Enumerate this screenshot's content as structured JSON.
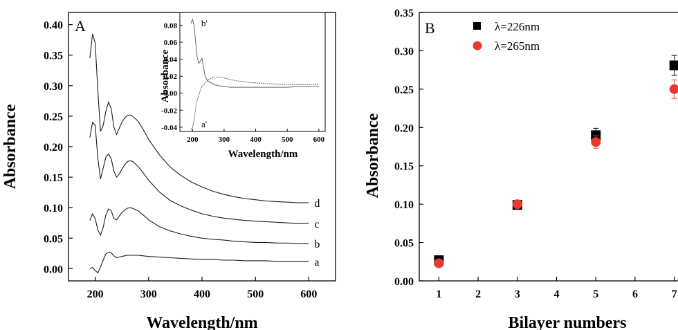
{
  "colors": {
    "series_226": "#000000",
    "series_265": "#e8392f",
    "axis": "#000000",
    "curve": "#1a1a1a"
  },
  "chart_data": [
    {
      "panel": "A",
      "type": "line",
      "xlabel": "Wavelength/nm",
      "ylabel": "Absorbance",
      "xlim": [
        150,
        650
      ],
      "ylim": [
        -0.02,
        0.42
      ],
      "xticks": [
        200,
        300,
        400,
        500,
        600
      ],
      "yticks": [
        0.0,
        0.05,
        0.1,
        0.15,
        0.2,
        0.25,
        0.3,
        0.35,
        0.4
      ],
      "grid": false,
      "series": [
        {
          "name": "a",
          "x": [
            190,
            195,
            200,
            205,
            210,
            215,
            220,
            225,
            230,
            235,
            240,
            245,
            250,
            255,
            260,
            265,
            270,
            280,
            290,
            300,
            320,
            340,
            360,
            380,
            400,
            420,
            440,
            460,
            480,
            500,
            520,
            540,
            560,
            580,
            600
          ],
          "y": [
            0.0,
            0.002,
            -0.003,
            -0.007,
            0.003,
            0.014,
            0.024,
            0.027,
            0.026,
            0.021,
            0.018,
            0.019,
            0.02,
            0.021,
            0.022,
            0.022,
            0.022,
            0.022,
            0.021,
            0.02,
            0.019,
            0.018,
            0.017,
            0.016,
            0.015,
            0.015,
            0.014,
            0.014,
            0.013,
            0.013,
            0.013,
            0.012,
            0.012,
            0.012,
            0.012
          ]
        },
        {
          "name": "b",
          "x": [
            190,
            195,
            200,
            205,
            210,
            215,
            220,
            225,
            230,
            235,
            240,
            245,
            250,
            255,
            260,
            265,
            270,
            280,
            290,
            300,
            320,
            340,
            360,
            380,
            400,
            420,
            440,
            460,
            480,
            500,
            520,
            540,
            560,
            580,
            600
          ],
          "y": [
            0.079,
            0.09,
            0.082,
            0.063,
            0.055,
            0.068,
            0.088,
            0.098,
            0.095,
            0.082,
            0.08,
            0.086,
            0.092,
            0.096,
            0.099,
            0.1,
            0.099,
            0.095,
            0.088,
            0.08,
            0.069,
            0.062,
            0.057,
            0.053,
            0.05,
            0.048,
            0.047,
            0.045,
            0.044,
            0.043,
            0.043,
            0.042,
            0.042,
            0.041,
            0.041
          ]
        },
        {
          "name": "c",
          "x": [
            190,
            195,
            200,
            205,
            210,
            215,
            220,
            225,
            230,
            235,
            240,
            245,
            250,
            255,
            260,
            265,
            270,
            280,
            290,
            300,
            320,
            340,
            360,
            380,
            400,
            420,
            440,
            460,
            480,
            500,
            520,
            540,
            560,
            580,
            600
          ],
          "y": [
            0.215,
            0.24,
            0.235,
            0.18,
            0.147,
            0.165,
            0.183,
            0.188,
            0.18,
            0.16,
            0.15,
            0.155,
            0.163,
            0.17,
            0.175,
            0.177,
            0.176,
            0.168,
            0.157,
            0.145,
            0.126,
            0.112,
            0.103,
            0.096,
            0.09,
            0.086,
            0.083,
            0.081,
            0.079,
            0.078,
            0.077,
            0.076,
            0.075,
            0.074,
            0.074
          ]
        },
        {
          "name": "d",
          "x": [
            190,
            195,
            200,
            205,
            210,
            215,
            220,
            225,
            230,
            235,
            240,
            245,
            250,
            255,
            260,
            265,
            270,
            280,
            290,
            300,
            320,
            340,
            360,
            380,
            400,
            420,
            440,
            460,
            480,
            500,
            520,
            540,
            560,
            580,
            600
          ],
          "y": [
            0.345,
            0.385,
            0.37,
            0.29,
            0.225,
            0.235,
            0.258,
            0.273,
            0.262,
            0.232,
            0.22,
            0.23,
            0.24,
            0.247,
            0.251,
            0.252,
            0.25,
            0.242,
            0.228,
            0.212,
            0.187,
            0.167,
            0.153,
            0.142,
            0.134,
            0.127,
            0.122,
            0.118,
            0.115,
            0.113,
            0.111,
            0.11,
            0.109,
            0.108,
            0.108
          ]
        }
      ],
      "inset": {
        "type": "line",
        "xlabel": "Wavelength/nm",
        "ylabel": "Absorbance",
        "xlim": [
          160,
          620
        ],
        "ylim": [
          -0.045,
          0.095
        ],
        "xticks": [
          200,
          300,
          400,
          500,
          600
        ],
        "yticks": [
          -0.04,
          -0.02,
          0.0,
          0.02,
          0.04,
          0.06,
          0.08
        ],
        "series": [
          {
            "name": "b'",
            "x": [
              195,
              200,
              205,
              210,
              215,
              220,
              225,
              230,
              235,
              240,
              245,
              250,
              260,
              270,
              280,
              300,
              320,
              350,
              400,
              450,
              500,
              550,
              600
            ],
            "y": [
              0.082,
              0.087,
              0.08,
              0.06,
              0.042,
              0.035,
              0.038,
              0.041,
              0.03,
              0.02,
              0.016,
              0.014,
              0.012,
              0.01,
              0.009,
              0.008,
              0.007,
              0.007,
              0.007,
              0.007,
              0.007,
              0.008,
              0.008
            ]
          },
          {
            "name": "a'",
            "x": [
              195,
              200,
              205,
              210,
              215,
              220,
              225,
              230,
              235,
              240,
              245,
              250,
              260,
              270,
              280,
              300,
              320,
              350,
              400,
              450,
              500,
              550,
              600
            ],
            "y": [
              -0.043,
              -0.04,
              -0.032,
              -0.018,
              -0.008,
              -0.002,
              0.004,
              0.008,
              0.01,
              0.012,
              0.014,
              0.016,
              0.018,
              0.019,
              0.019,
              0.018,
              0.016,
              0.014,
              0.012,
              0.011,
              0.01,
              0.01,
              0.01
            ]
          }
        ]
      }
    },
    {
      "panel": "B",
      "type": "scatter",
      "xlabel": "Bilayer numbers",
      "ylabel": "Absorbance",
      "xlim": [
        0.5,
        7.2
      ],
      "ylim": [
        0.0,
        0.35
      ],
      "xticks": [
        1,
        2,
        3,
        4,
        5,
        6,
        7
      ],
      "yticks": [
        0.0,
        0.05,
        0.1,
        0.15,
        0.2,
        0.25,
        0.3,
        0.35
      ],
      "legend": "top-left",
      "series": [
        {
          "name": "λ=226nm",
          "marker": "square",
          "x": [
            1,
            3,
            5,
            7
          ],
          "y": [
            0.027,
            0.099,
            0.19,
            0.281
          ],
          "err": [
            0.002,
            0.003,
            0.009,
            0.013
          ]
        },
        {
          "name": "λ=265nm",
          "marker": "circle",
          "x": [
            1,
            3,
            5,
            7
          ],
          "y": [
            0.023,
            0.1,
            0.181,
            0.25
          ],
          "err": [
            0.002,
            0.003,
            0.008,
            0.012
          ]
        }
      ]
    }
  ],
  "text": {
    "panel_a_letter": "A",
    "panel_b_letter": "B",
    "inset_top_label": "b'",
    "inset_bottom_label": "a'"
  }
}
